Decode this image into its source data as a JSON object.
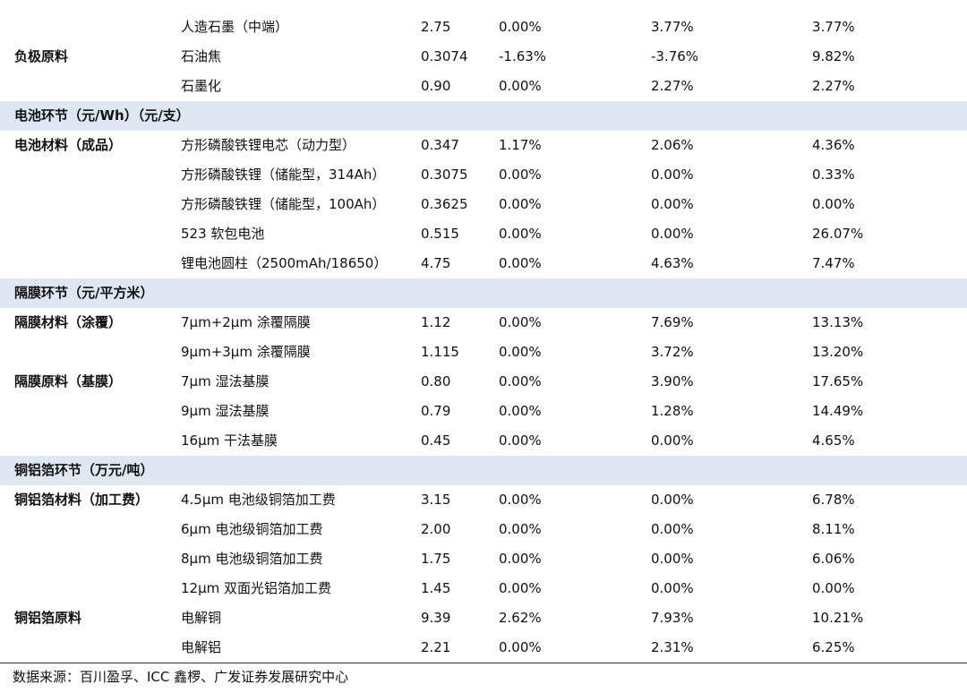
{
  "rows": [
    {
      "kind": "item",
      "category": "",
      "name": "人造石墨（中端）",
      "price": "2.75",
      "c1": "0.00%",
      "c2": "3.77%",
      "c3": "3.77%"
    },
    {
      "kind": "item",
      "category": "负极原料",
      "name": "石油焦",
      "price": "0.3074",
      "c1": "-1.63%",
      "c2": "-3.76%",
      "c3": "9.82%"
    },
    {
      "kind": "item",
      "category": "",
      "name": "石墨化",
      "price": "0.90",
      "c1": "0.00%",
      "c2": "2.27%",
      "c3": "2.27%"
    },
    {
      "kind": "section",
      "label": "电池环节（元/Wh）（元/支）"
    },
    {
      "kind": "item",
      "category": "电池材料（成品）",
      "name": "方形磷酸铁锂电芯（动力型）",
      "price": "0.347",
      "c1": "1.17%",
      "c2": "2.06%",
      "c3": "4.36%"
    },
    {
      "kind": "item",
      "category": "",
      "name": "方形磷酸铁锂（储能型，314Ah）",
      "price": "0.3075",
      "c1": "0.00%",
      "c2": "0.00%",
      "c3": "0.33%"
    },
    {
      "kind": "item",
      "category": "",
      "name": "方形磷酸铁锂（储能型，100Ah）",
      "price": "0.3625",
      "c1": "0.00%",
      "c2": "0.00%",
      "c3": "0.00%"
    },
    {
      "kind": "item",
      "category": "",
      "name": "523 软包电池",
      "price": "0.515",
      "c1": "0.00%",
      "c2": "0.00%",
      "c3": "26.07%"
    },
    {
      "kind": "item",
      "category": "",
      "name": "锂电池圆柱（2500mAh/18650）",
      "price": "4.75",
      "c1": "0.00%",
      "c2": "4.63%",
      "c3": "7.47%"
    },
    {
      "kind": "section",
      "label": "隔膜环节（元/平方米）"
    },
    {
      "kind": "item",
      "category": "隔膜材料（涂覆）",
      "name": "7μm+2μm 涂覆隔膜",
      "price": "1.12",
      "c1": "0.00%",
      "c2": "7.69%",
      "c3": "13.13%"
    },
    {
      "kind": "item",
      "category": "",
      "name": "9μm+3μm 涂覆隔膜",
      "price": "1.115",
      "c1": "0.00%",
      "c2": "3.72%",
      "c3": "13.20%"
    },
    {
      "kind": "item",
      "category": "隔膜原料（基膜）",
      "name": "7μm 湿法基膜",
      "price": "0.80",
      "c1": "0.00%",
      "c2": "3.90%",
      "c3": "17.65%"
    },
    {
      "kind": "item",
      "category": "",
      "name": "9μm 湿法基膜",
      "price": "0.79",
      "c1": "0.00%",
      "c2": "1.28%",
      "c3": "14.49%"
    },
    {
      "kind": "item",
      "category": "",
      "name": "16μm 干法基膜",
      "price": "0.45",
      "c1": "0.00%",
      "c2": "0.00%",
      "c3": "4.65%"
    },
    {
      "kind": "section",
      "label": "铜铝箔环节（万元/吨）"
    },
    {
      "kind": "item",
      "category": "铜铝箔材料（加工费）",
      "name": "4.5μm 电池级铜箔加工费",
      "price": "3.15",
      "c1": "0.00%",
      "c2": "0.00%",
      "c3": "6.78%"
    },
    {
      "kind": "item",
      "category": "",
      "name": "6μm 电池级铜箔加工费",
      "price": "2.00",
      "c1": "0.00%",
      "c2": "0.00%",
      "c3": "8.11%"
    },
    {
      "kind": "item",
      "category": "",
      "name": "8μm 电池级铜箔加工费",
      "price": "1.75",
      "c1": "0.00%",
      "c2": "0.00%",
      "c3": "6.06%"
    },
    {
      "kind": "item",
      "category": "",
      "name": "12μm 双面光铝箔加工费",
      "price": "1.45",
      "c1": "0.00%",
      "c2": "0.00%",
      "c3": "0.00%"
    },
    {
      "kind": "item",
      "category": "铜铝箔原料",
      "name": "电解铜",
      "price": "9.39",
      "c1": "2.62%",
      "c2": "7.93%",
      "c3": "10.21%"
    },
    {
      "kind": "item",
      "category": "",
      "name": "电解铝",
      "price": "2.21",
      "c1": "0.00%",
      "c2": "2.31%",
      "c3": "6.25%"
    }
  ],
  "source_note": "数据来源：百川盈孚、ICC 鑫椤、广发证券发展研究中心"
}
